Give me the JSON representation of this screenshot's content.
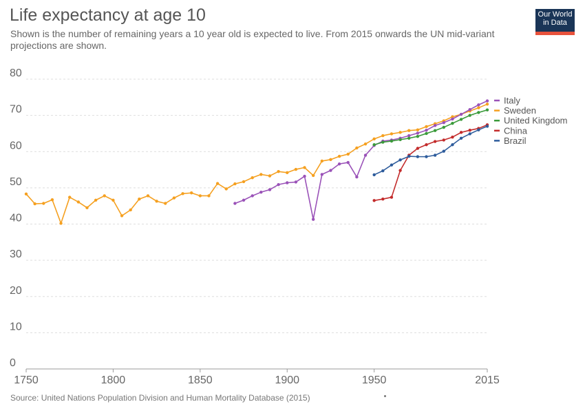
{
  "header": {
    "title": "Life expectancy at age 10",
    "subtitle": "Shown is the number of remaining years a 10 year old is expected to live. From 2015 onwards the UN mid-variant projections are shown."
  },
  "logo": {
    "line1": "Our World",
    "line2": "in Data"
  },
  "footer": {
    "source": "Source: United Nations Population Division and Human Mortality Database (2015)"
  },
  "chart_data": {
    "type": "line",
    "title": "Life expectancy at age 10",
    "xlabel": "",
    "ylabel": "",
    "xlim": [
      1750,
      2015
    ],
    "ylim": [
      0,
      80
    ],
    "x_ticks": [
      "1750",
      "1800",
      "1850",
      "1900",
      "1950",
      "2015"
    ],
    "y_ticks": [
      "0",
      "10",
      "20",
      "30",
      "40",
      "50",
      "60",
      "70",
      "80"
    ],
    "grid": true,
    "legend_position": "right",
    "series": [
      {
        "name": "Sweden",
        "color": "#f5a020",
        "points": [
          [
            1750,
            48.3
          ],
          [
            1755,
            45.6
          ],
          [
            1760,
            45.7
          ],
          [
            1765,
            46.7
          ],
          [
            1770,
            40.2
          ],
          [
            1775,
            47.4
          ],
          [
            1780,
            46.1
          ],
          [
            1785,
            44.5
          ],
          [
            1790,
            46.6
          ],
          [
            1795,
            47.8
          ],
          [
            1800,
            46.6
          ],
          [
            1805,
            42.3
          ],
          [
            1810,
            43.9
          ],
          [
            1815,
            46.9
          ],
          [
            1820,
            47.8
          ],
          [
            1825,
            46.3
          ],
          [
            1830,
            45.7
          ],
          [
            1835,
            47.2
          ],
          [
            1840,
            48.4
          ],
          [
            1845,
            48.6
          ],
          [
            1850,
            47.8
          ],
          [
            1855,
            47.8
          ],
          [
            1860,
            51.2
          ],
          [
            1865,
            49.7
          ],
          [
            1870,
            51.1
          ],
          [
            1875,
            51.7
          ],
          [
            1880,
            52.8
          ],
          [
            1885,
            53.7
          ],
          [
            1890,
            53.3
          ],
          [
            1895,
            54.5
          ],
          [
            1900,
            54.2
          ],
          [
            1905,
            55.1
          ],
          [
            1910,
            55.6
          ],
          [
            1915,
            53.4
          ],
          [
            1920,
            57.4
          ],
          [
            1925,
            57.8
          ],
          [
            1930,
            58.7
          ],
          [
            1935,
            59.3
          ],
          [
            1940,
            61.0
          ],
          [
            1945,
            62.1
          ],
          [
            1950,
            63.5
          ],
          [
            1955,
            64.4
          ],
          [
            1960,
            64.9
          ],
          [
            1965,
            65.3
          ],
          [
            1970,
            65.8
          ],
          [
            1975,
            66.0
          ],
          [
            1980,
            66.9
          ],
          [
            1985,
            67.7
          ],
          [
            1990,
            68.5
          ],
          [
            1995,
            69.6
          ],
          [
            2000,
            70.3
          ],
          [
            2005,
            71.2
          ],
          [
            2010,
            72.1
          ],
          [
            2015,
            73.1
          ]
        ]
      },
      {
        "name": "Italy",
        "color": "#9a52b8",
        "points": [
          [
            1870,
            45.7
          ],
          [
            1875,
            46.6
          ],
          [
            1880,
            47.8
          ],
          [
            1885,
            48.8
          ],
          [
            1890,
            49.5
          ],
          [
            1895,
            50.9
          ],
          [
            1900,
            51.4
          ],
          [
            1905,
            51.6
          ],
          [
            1910,
            53.2
          ],
          [
            1915,
            41.3
          ],
          [
            1920,
            53.7
          ],
          [
            1925,
            54.8
          ],
          [
            1930,
            56.6
          ],
          [
            1935,
            57.0
          ],
          [
            1940,
            53.0
          ],
          [
            1945,
            59.0
          ],
          [
            1950,
            61.7
          ],
          [
            1955,
            62.9
          ],
          [
            1960,
            63.2
          ],
          [
            1965,
            63.7
          ],
          [
            1970,
            64.4
          ],
          [
            1975,
            65.1
          ],
          [
            1980,
            65.9
          ],
          [
            1985,
            67.2
          ],
          [
            1990,
            68.0
          ],
          [
            1995,
            69.0
          ],
          [
            2000,
            70.3
          ],
          [
            2005,
            71.6
          ],
          [
            2010,
            72.9
          ],
          [
            2015,
            74.0
          ]
        ]
      },
      {
        "name": "United Kingdom",
        "color": "#3a9a3a",
        "points": [
          [
            1950,
            61.9
          ],
          [
            1955,
            62.6
          ],
          [
            1960,
            62.9
          ],
          [
            1965,
            63.3
          ],
          [
            1970,
            63.7
          ],
          [
            1975,
            64.2
          ],
          [
            1980,
            65.0
          ],
          [
            1985,
            65.8
          ],
          [
            1990,
            66.7
          ],
          [
            1995,
            67.8
          ],
          [
            2000,
            68.9
          ],
          [
            2005,
            70.0
          ],
          [
            2010,
            70.8
          ],
          [
            2015,
            71.5
          ]
        ]
      },
      {
        "name": "China",
        "color": "#c32b2b",
        "points": [
          [
            1950,
            46.5
          ],
          [
            1955,
            46.9
          ],
          [
            1960,
            47.4
          ],
          [
            1965,
            54.8
          ],
          [
            1970,
            59.0
          ],
          [
            1975,
            60.9
          ],
          [
            1980,
            61.9
          ],
          [
            1985,
            62.8
          ],
          [
            1990,
            63.2
          ],
          [
            1995,
            64.0
          ],
          [
            2000,
            65.3
          ],
          [
            2005,
            65.9
          ],
          [
            2010,
            66.4
          ],
          [
            2015,
            67.4
          ]
        ]
      },
      {
        "name": "Brazil",
        "color": "#2e5c9c",
        "points": [
          [
            1950,
            53.6
          ],
          [
            1955,
            54.7
          ],
          [
            1960,
            56.3
          ],
          [
            1965,
            57.7
          ],
          [
            1970,
            58.7
          ],
          [
            1975,
            58.6
          ],
          [
            1980,
            58.6
          ],
          [
            1985,
            59.0
          ],
          [
            1990,
            60.1
          ],
          [
            1995,
            61.9
          ],
          [
            2000,
            63.7
          ],
          [
            2005,
            64.9
          ],
          [
            2010,
            66.0
          ],
          [
            2015,
            67.0
          ]
        ]
      }
    ],
    "legend_order": [
      "Italy",
      "Sweden",
      "United Kingdom",
      "China",
      "Brazil"
    ]
  }
}
